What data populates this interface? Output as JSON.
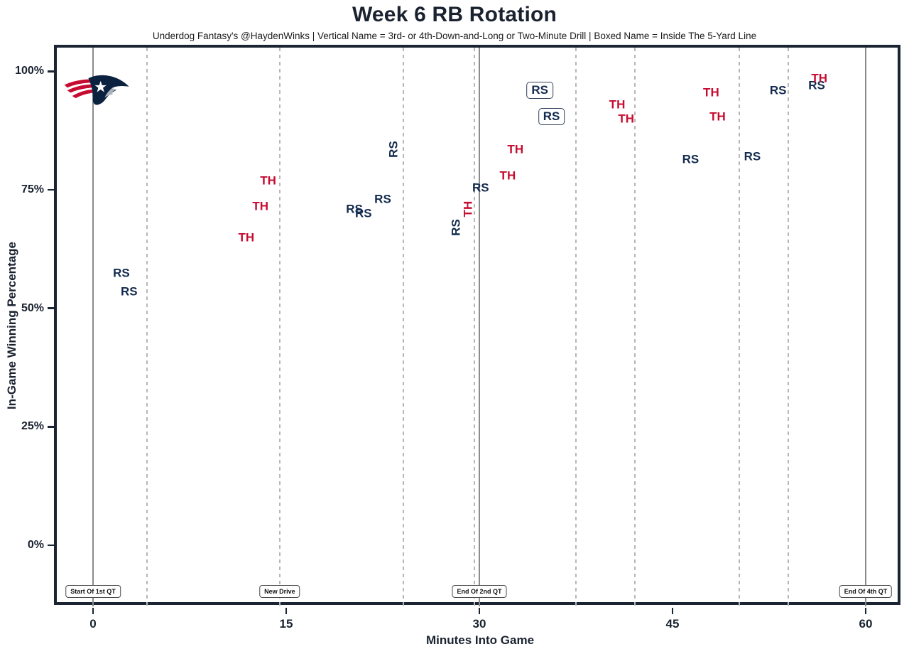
{
  "header": {
    "title": "Week 6 RB Rotation",
    "subtitle": "Underdog Fantasy's @HaydenWinks | Vertical Name = 3rd- or 4th-Down-and-Long or Two-Minute Drill | Boxed Name = Inside The 5-Yard Line"
  },
  "colors": {
    "rs_navy": "#132b4e",
    "th_red": "#c60c30",
    "panel_border": "#1b2433",
    "solid_line": "#8b8b8b",
    "dashed_line": "#b7b7b7"
  },
  "logo_name": "patriots-logo",
  "chart_data": {
    "type": "scatter",
    "title": "Week 6 RB Rotation",
    "xlabel": "Minutes Into Game",
    "ylabel": "In-Game Winning Percentage",
    "xlim": [
      -3,
      63
    ],
    "ylim": [
      -13,
      105
    ],
    "x_ticks": [
      0,
      15,
      30,
      45,
      60
    ],
    "y_ticks": [
      0,
      25,
      50,
      75,
      100
    ],
    "y_tick_suffix": "%",
    "grid": "vertical-only",
    "legend": "none",
    "solid_vlines_minutes": [
      0,
      30,
      60
    ],
    "dashed_vlines_minutes": [
      4.2,
      14.5,
      24.1,
      29.6,
      37.5,
      42.1,
      50.2,
      54.0
    ],
    "annotations": [
      {
        "x": 0,
        "label": "Start Of 1st QT"
      },
      {
        "x": 14.5,
        "label": "New Drive"
      },
      {
        "x": 30,
        "label": "End Of 2nd QT"
      },
      {
        "x": 60,
        "label": "End Of 4th QT"
      }
    ],
    "series_note": "labels are player initials; RS = navy, TH = red; vertical = 3rd/4th-and-long or two-minute drill; boxed = inside the 5-yard line",
    "points": [
      {
        "x": 2.2,
        "y": 57.5,
        "label": "RS",
        "style": "normal"
      },
      {
        "x": 2.8,
        "y": 53.5,
        "label": "RS",
        "style": "normal"
      },
      {
        "x": 11.9,
        "y": 65.0,
        "label": "TH",
        "style": "normal"
      },
      {
        "x": 13.0,
        "y": 71.5,
        "label": "TH",
        "style": "normal"
      },
      {
        "x": 13.6,
        "y": 77.0,
        "label": "TH",
        "style": "normal"
      },
      {
        "x": 20.3,
        "y": 71.0,
        "label": "RS",
        "style": "normal"
      },
      {
        "x": 21.0,
        "y": 70.0,
        "label": "RS",
        "style": "normal"
      },
      {
        "x": 22.5,
        "y": 73.0,
        "label": "RS",
        "style": "normal"
      },
      {
        "x": 23.3,
        "y": 83.5,
        "label": "RS",
        "style": "vertical"
      },
      {
        "x": 28.2,
        "y": 67.0,
        "label": "RS",
        "style": "vertical"
      },
      {
        "x": 29.1,
        "y": 71.0,
        "label": "TH",
        "style": "vertical"
      },
      {
        "x": 30.1,
        "y": 75.5,
        "label": "RS",
        "style": "normal"
      },
      {
        "x": 32.2,
        "y": 78.0,
        "label": "TH",
        "style": "normal"
      },
      {
        "x": 32.8,
        "y": 83.5,
        "label": "TH",
        "style": "normal"
      },
      {
        "x": 34.7,
        "y": 96.0,
        "label": "RS",
        "style": "boxed"
      },
      {
        "x": 35.6,
        "y": 90.5,
        "label": "RS",
        "style": "boxed"
      },
      {
        "x": 40.7,
        "y": 93.0,
        "label": "TH",
        "style": "normal"
      },
      {
        "x": 41.4,
        "y": 90.0,
        "label": "TH",
        "style": "normal"
      },
      {
        "x": 46.4,
        "y": 81.5,
        "label": "RS",
        "style": "normal"
      },
      {
        "x": 48.0,
        "y": 95.5,
        "label": "TH",
        "style": "normal"
      },
      {
        "x": 48.5,
        "y": 90.5,
        "label": "TH",
        "style": "normal"
      },
      {
        "x": 51.2,
        "y": 82.0,
        "label": "RS",
        "style": "normal"
      },
      {
        "x": 53.2,
        "y": 96.0,
        "label": "RS",
        "style": "normal"
      },
      {
        "x": 56.2,
        "y": 97.0,
        "label": "RS",
        "style": "normal"
      },
      {
        "x": 56.4,
        "y": 98.5,
        "label": "TH",
        "style": "normal"
      }
    ]
  }
}
